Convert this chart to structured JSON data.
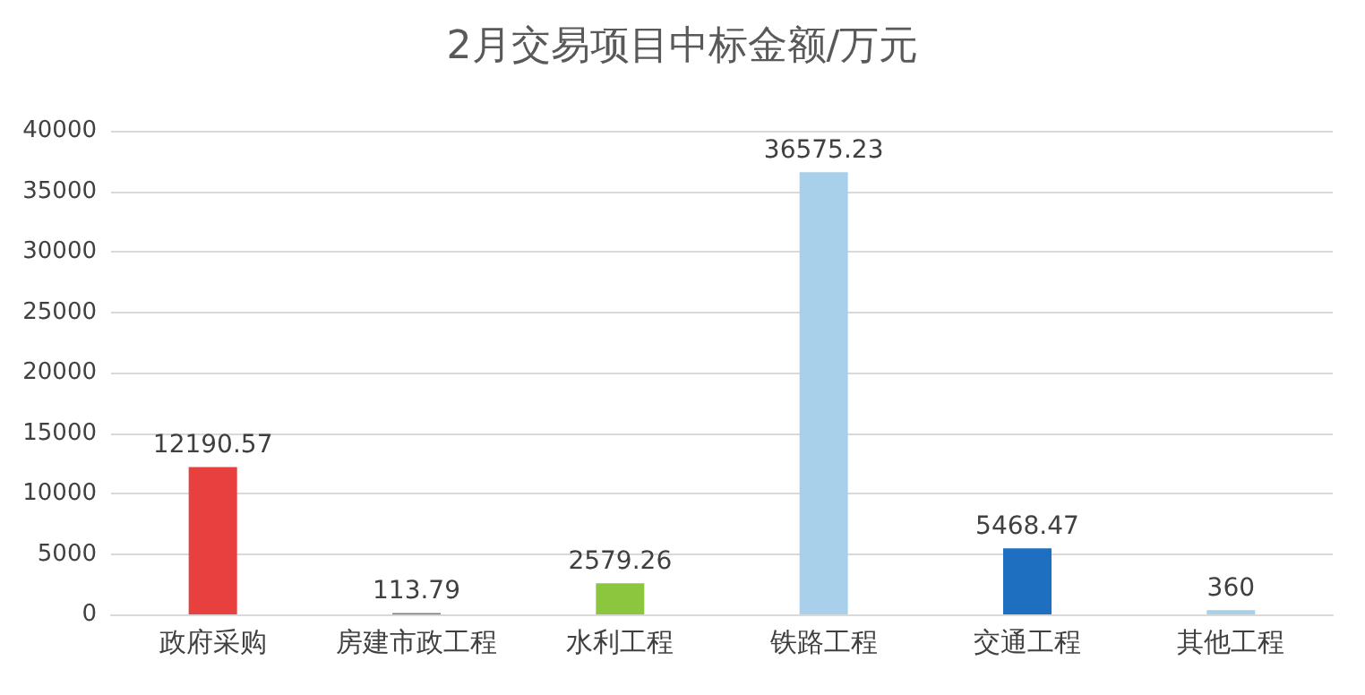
{
  "chart_data": {
    "type": "bar",
    "title": "2月交易项目中标金额/万元",
    "categories": [
      "政府采购",
      "房建市政工程",
      "水利工程",
      "铁路工程",
      "交通工程",
      "其他工程"
    ],
    "values": [
      12190.57,
      113.79,
      2579.26,
      36575.23,
      5468.47,
      360
    ],
    "colors": [
      "#e8403f",
      "#7f7f7f",
      "#8cc63e",
      "#a9d0ea",
      "#1f6fc1",
      "#a9d0ea"
    ],
    "ylim": [
      0,
      40000
    ],
    "yticks": [
      0,
      5000,
      10000,
      15000,
      20000,
      25000,
      30000,
      35000,
      40000
    ],
    "grid": "y",
    "data_labels": true
  }
}
